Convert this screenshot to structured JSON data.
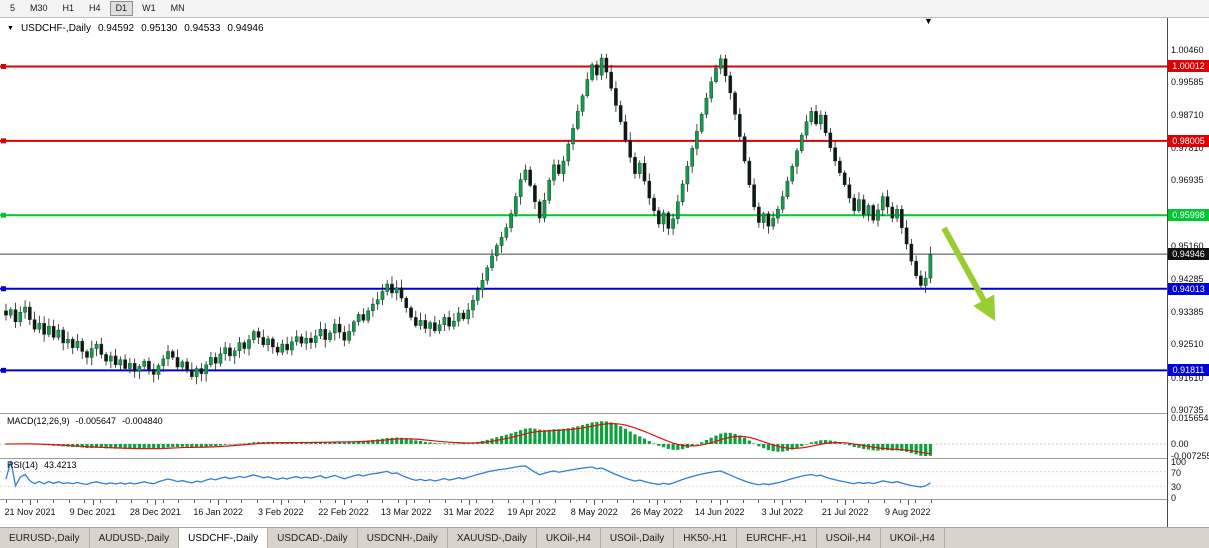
{
  "toolbar": {
    "timeframes": [
      "5",
      "M30",
      "H1",
      "H4",
      "D1",
      "W1",
      "MN"
    ],
    "active": "D1"
  },
  "chart_header": {
    "marker": "▼",
    "title": "USDCHF-,Daily",
    "open": "0.94592",
    "high": "0.95130",
    "low": "0.94533",
    "close": "0.94946"
  },
  "end_marker": {
    "symbol": "▼"
  },
  "price_axis": {
    "ticks": [
      "1.00460",
      "0.99585",
      "0.98710",
      "0.97810",
      "0.96935",
      "0.96060",
      "0.95160",
      "0.94285",
      "0.93385",
      "0.92510",
      "0.91610",
      "0.90735"
    ]
  },
  "hlines": [
    {
      "price": 1.00012,
      "label": "1.00012",
      "color": "#e00000",
      "badge_color": "#e00000",
      "thick": 2,
      "handle": true
    },
    {
      "price": 0.98005,
      "label": "0.98005",
      "color": "#e00000",
      "badge_color": "#e00000",
      "thick": 2,
      "handle": true
    },
    {
      "price": 0.95998,
      "label": "0.95998",
      "color": "#00c832",
      "badge_color": "#00c832",
      "thick": 2,
      "handle": true
    },
    {
      "price": 0.94946,
      "label": "0.94946",
      "color": "#444444",
      "badge_color": "#111111",
      "thick": 1,
      "handle": false
    },
    {
      "price": 0.94013,
      "label": "0.94013",
      "color": "#0000d8",
      "badge_color": "#0000d8",
      "thick": 2,
      "handle": true
    },
    {
      "price": 0.91811,
      "label": "0.91811",
      "color": "#0000d8",
      "badge_color": "#0000d8",
      "thick": 2,
      "handle": true
    }
  ],
  "chart_data": {
    "type": "candlestick",
    "symbol": "USDCHF",
    "timeframe": "Daily",
    "y_range": [
      0.9066,
      1.0132
    ],
    "x_labels": [
      "21 Nov 2021",
      "9 Dec 2021",
      "28 Dec 2021",
      "16 Jan 2022",
      "3 Feb 2022",
      "22 Feb 2022",
      "13 Mar 2022",
      "31 Mar 2022",
      "19 Apr 2022",
      "8 May 2022",
      "26 May 2022",
      "14 Jun 2022",
      "3 Jul 2022",
      "21 Jul 2022",
      "9 Aug 2022"
    ],
    "closes": [
      0.933,
      0.9345,
      0.9312,
      0.9338,
      0.9352,
      0.9318,
      0.9292,
      0.9308,
      0.9278,
      0.93,
      0.927,
      0.929,
      0.9255,
      0.9265,
      0.9242,
      0.926,
      0.9232,
      0.9216,
      0.924,
      0.9252,
      0.9224,
      0.9206,
      0.922,
      0.9196,
      0.921,
      0.9186,
      0.92,
      0.9178,
      0.9192,
      0.9206,
      0.9184,
      0.917,
      0.9194,
      0.9212,
      0.9232,
      0.9216,
      0.919,
      0.9204,
      0.9182,
      0.9164,
      0.9186,
      0.9172,
      0.9196,
      0.9216,
      0.92,
      0.9226,
      0.9242,
      0.922,
      0.9234,
      0.9256,
      0.924,
      0.9264,
      0.9286,
      0.927,
      0.925,
      0.9266,
      0.9244,
      0.923,
      0.9252,
      0.9236,
      0.9258,
      0.9272,
      0.9254,
      0.9268,
      0.9256,
      0.9274,
      0.9292,
      0.9264,
      0.9282,
      0.9306,
      0.9284,
      0.9262,
      0.9286,
      0.9312,
      0.9332,
      0.9316,
      0.9342,
      0.936,
      0.9372,
      0.9394,
      0.9414,
      0.939,
      0.9404,
      0.9376,
      0.935,
      0.9324,
      0.9302,
      0.9316,
      0.9294,
      0.931,
      0.9288,
      0.9304,
      0.9324,
      0.93,
      0.9314,
      0.9336,
      0.932,
      0.9344,
      0.937,
      0.9398,
      0.9424,
      0.9458,
      0.949,
      0.9518,
      0.954,
      0.9566,
      0.9604,
      0.965,
      0.9696,
      0.9722,
      0.968,
      0.9636,
      0.9592,
      0.964,
      0.9694,
      0.9736,
      0.9712,
      0.9746,
      0.9792,
      0.9834,
      0.988,
      0.9922,
      0.9966,
      1.0006,
      0.9978,
      1.0024,
      0.9986,
      0.9942,
      0.9896,
      0.9852,
      0.9802,
      0.9756,
      0.9712,
      0.974,
      0.9692,
      0.9646,
      0.9612,
      0.9576,
      0.9606,
      0.9564,
      0.959,
      0.9636,
      0.9684,
      0.9732,
      0.978,
      0.9826,
      0.9872,
      0.9916,
      0.996,
      0.9996,
      1.0022,
      0.9976,
      0.993,
      0.9872,
      0.9812,
      0.9746,
      0.9682,
      0.9622,
      0.958,
      0.9604,
      0.957,
      0.9592,
      0.9616,
      0.965,
      0.9692,
      0.9732,
      0.9774,
      0.9816,
      0.9852,
      0.988,
      0.9846,
      0.987,
      0.9822,
      0.9782,
      0.9746,
      0.9714,
      0.9682,
      0.9646,
      0.9612,
      0.9642,
      0.9602,
      0.9626,
      0.9586,
      0.9614,
      0.965,
      0.9622,
      0.9592,
      0.9616,
      0.9566,
      0.9522,
      0.9476,
      0.9436,
      0.941,
      0.943,
      0.94946
    ]
  },
  "macd": {
    "label": "MACD(12,26,9)",
    "value_macd": "-0.005647",
    "value_signal": "-0.004840",
    "axis": [
      "0.015654",
      "0.00",
      "-0.007255"
    ],
    "max": 0.015654,
    "min": -0.007255
  },
  "rsi": {
    "label": "RSI(14)",
    "value": "43.4213",
    "axis": [
      "100",
      "70",
      "30",
      "0"
    ],
    "levels": [
      70,
      30
    ]
  },
  "annotation": {
    "type": "arrow",
    "color": "#9acd32",
    "from": [
      944,
      228
    ],
    "to": [
      988,
      308
    ]
  },
  "tabs": {
    "items": [
      "EURUSD-,Daily",
      "AUDUSD-,Daily",
      "USDCHF-,Daily",
      "USDCAD-,Daily",
      "USDCNH-,Daily",
      "XAUUSD-,Daily",
      "UKOil-,H4",
      "USOil-,Daily",
      "HK50-,H1",
      "EURCHF-,H1",
      "USOil-,H4",
      "UKOil-,H4"
    ],
    "active_index": 2
  }
}
